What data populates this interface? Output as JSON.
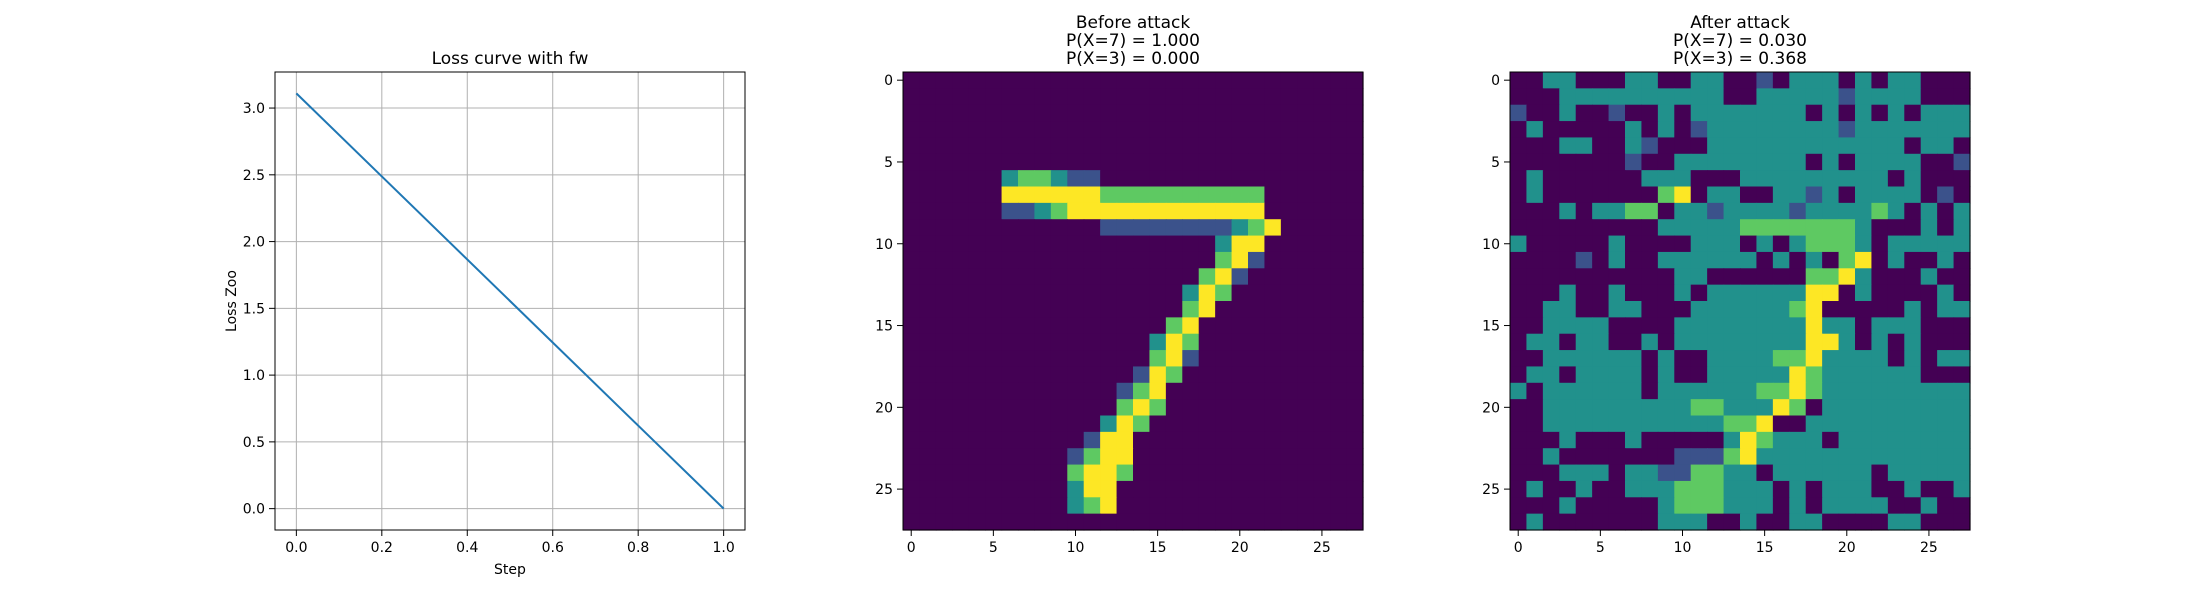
{
  "colors": {
    "line": "#1f77b4",
    "grid": "#b0b0b0",
    "axes": "#000000",
    "viridis": [
      "#440154",
      "#3b528b",
      "#21918c",
      "#5ec962",
      "#fde725"
    ]
  },
  "chart_data": [
    {
      "type": "line",
      "title": "Loss curve with fw",
      "xlabel": "Step",
      "ylabel": "Loss Zoo",
      "xlim": [
        -0.05,
        1.05
      ],
      "ylim": [
        -0.16,
        3.27
      ],
      "grid": true,
      "x_ticks": [
        0.0,
        0.2,
        0.4,
        0.6,
        0.8,
        1.0
      ],
      "x_tick_labels": [
        "0.0",
        "0.2",
        "0.4",
        "0.6",
        "0.8",
        "1.0"
      ],
      "y_ticks": [
        0.0,
        0.5,
        1.0,
        1.5,
        2.0,
        2.5,
        3.0
      ],
      "y_tick_labels": [
        "0.0",
        "0.5",
        "1.0",
        "1.5",
        "2.0",
        "2.5",
        "3.0"
      ],
      "series": [
        {
          "x": [
            0.0,
            1.0
          ],
          "y": [
            3.11,
            0.0
          ]
        }
      ]
    },
    {
      "type": "heatmap",
      "title_lines": [
        "Before attack",
        "P(X=7) = 1.000",
        "P(X=3) = 0.000"
      ],
      "colormap": "viridis",
      "rows": 28,
      "cols": 28,
      "ticks": [
        0,
        5,
        10,
        15,
        20,
        25
      ],
      "tick_labels": [
        "0",
        "5",
        "10",
        "15",
        "20",
        "25"
      ],
      "grid": [
        "0000000000000000000000000000",
        "0000000000000000000000000000",
        "0000000000000000000000000000",
        "0000000000000000000000000000",
        "0000000000000000000000000000",
        "0000000000000000000000000000",
        "0000002332110000000000000000",
        "0000004444443333333333000000",
        "0000001123444444444444000000",
        "0000000000001111111123400000",
        "0000000000000000000244000000",
        "0000000000000000000341000000",
        "0000000000000000003410000000",
        "0000000000000000024300000000",
        "0000000000000000034000000000",
        "0000000000000000340000000000",
        "0000000000000002430000000000",
        "0000000000000003410000000000",
        "0000000000000014300000000000",
        "0000000000000134000000000000",
        "0000000000000343000000000000",
        "0000000000002430000000000000",
        "0000000000014400000000000000",
        "0000000000134400000000000000",
        "0000000000344300000000000000",
        "0000000000244000000000000000",
        "0000000000234000000000000000",
        "0000000000000000000000000000"
      ]
    },
    {
      "type": "heatmap",
      "title_lines": [
        "After attack",
        "P(X=7) = 0.030",
        "P(X=3) = 0.368"
      ],
      "colormap": "viridis",
      "rows": 28,
      "cols": 28,
      "ticks": [
        0,
        5,
        10,
        15,
        20,
        25
      ],
      "tick_labels": [
        "0",
        "5",
        "10",
        "15",
        "20",
        "25"
      ],
      "grid": [
        "0022000220022001022202022000",
        "0002222222222002222212222000",
        "1002001002022222220202020222",
        "0200000202012222222212222222",
        "0002200210002222222222220220",
        "0000000100222222220202222001",
        "0200000022200022222222202000",
        "0200000003402200221202222010",
        "0002022330221222212222320202",
        "0000000002222233333332000202",
        "2000002000022202023332022222",
        "0000102002222220202034020020",
        "0000000000220000003342000200",
        "0002002000202222224402000020",
        "0022002200022222234000002022",
        "0022220000222222224220222000",
        "0220220020222222224420202000",
        "0022222202002222334222202022",
        "0220222202002222243222222000",
        "2022222202222223343222222222",
        "0022222222233222430222222222",
        "0022222222222334002222222222",
        "0002000200000243222022222222",
        "0020000000111342222222222222",
        "0002220221133220222222022222",
        "0200200222333222020222002002",
        "0002000002333222020222200200",
        "0200000002220020022000022000"
      ]
    }
  ]
}
